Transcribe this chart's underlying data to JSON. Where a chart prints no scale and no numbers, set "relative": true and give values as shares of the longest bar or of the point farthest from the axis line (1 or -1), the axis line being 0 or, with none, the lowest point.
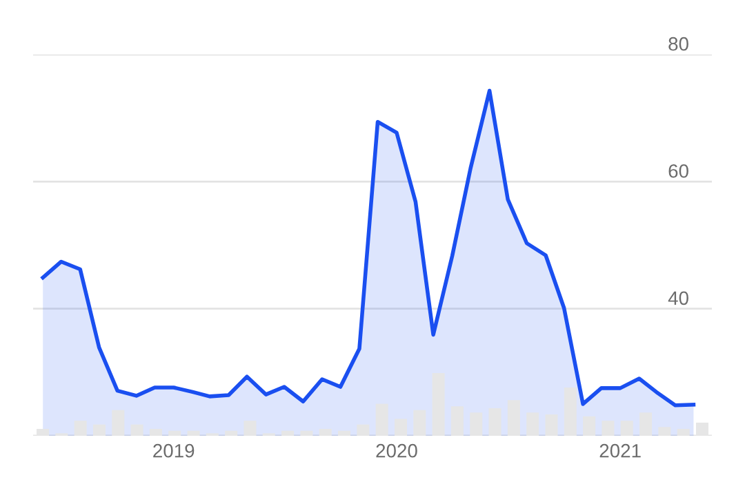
{
  "chart_data": [
    {
      "type": "area",
      "x": [
        "2018-06",
        "2018-07",
        "2018-08",
        "2018-09",
        "2018-10",
        "2018-11",
        "2018-12",
        "2019-01",
        "2019-02",
        "2019-03",
        "2019-04",
        "2019-05",
        "2019-06",
        "2019-07",
        "2019-08",
        "2019-09",
        "2019-10",
        "2019-11",
        "2019-12",
        "2020-01",
        "2020-02",
        "2020-03",
        "2020-04",
        "2020-05",
        "2020-06",
        "2020-07",
        "2020-08",
        "2020-09",
        "2020-10",
        "2020-11",
        "2020-12",
        "2021-01",
        "2021-02",
        "2021-03",
        "2021-04",
        "2021-05"
      ],
      "series": [
        {
          "color": "#1a4ff0",
          "values": [
            44.9,
            47.4,
            46.2,
            33.9,
            27.1,
            26.3,
            27.6,
            27.6,
            26.9,
            26.2,
            26.4,
            29.3,
            26.5,
            27.7,
            25.4,
            28.9,
            27.7,
            33.7,
            69.4,
            67.7,
            56.8,
            35.9,
            48.3,
            62.1,
            74.3,
            57.2,
            50.3,
            48.4,
            40.1,
            25.0,
            27.5,
            27.5,
            29.0,
            26.9,
            24.8,
            24.9
          ]
        }
      ],
      "xlim": [
        "2018-05-16",
        "2021-05-31"
      ],
      "xticks": [
        {
          "value": "2019-01-01",
          "label": "2019"
        },
        {
          "value": "2020-01-01",
          "label": "2020"
        },
        {
          "value": "2021-01-01",
          "label": "2021"
        }
      ],
      "ylim": [
        20,
        80
      ],
      "yticks": [
        {
          "value": 20,
          "label": null
        },
        40,
        60,
        80
      ],
      "grid": "y",
      "marker": "none",
      "line_style": "solid"
    },
    {
      "type": "bar",
      "relative": true,
      "categories": [
        null,
        null,
        null,
        null,
        null,
        null,
        null,
        null,
        null,
        null,
        null,
        null,
        null,
        null,
        null,
        null,
        null,
        null,
        null,
        null,
        null,
        null,
        null,
        null,
        null,
        null,
        null,
        null,
        null,
        null,
        null,
        null,
        null,
        null,
        null,
        null
      ],
      "color": "#e6e6e6",
      "values": [
        0.11,
        0.04,
        0.24,
        0.18,
        0.41,
        0.18,
        0.11,
        0.08,
        0.08,
        0.04,
        0.08,
        0.24,
        0.04,
        0.08,
        0.08,
        0.11,
        0.08,
        0.18,
        0.51,
        0.27,
        0.41,
        1,
        0.47,
        0.37,
        0.44,
        0.57,
        0.37,
        0.34,
        0.77,
        0.31,
        0.24,
        0.24,
        0.37,
        0.14,
        0.11,
        0.21
      ]
    }
  ]
}
